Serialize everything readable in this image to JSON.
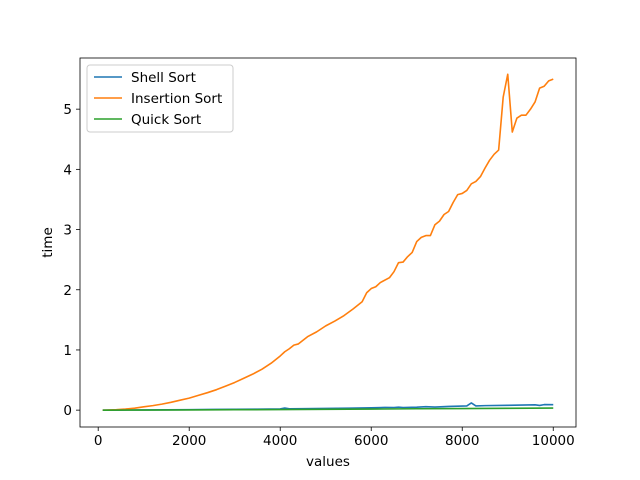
{
  "chart_data": {
    "type": "line",
    "xlabel": "values",
    "ylabel": "time",
    "xlim": [
      -400,
      10500
    ],
    "ylim": [
      -0.28,
      5.85
    ],
    "xticks": [
      0,
      2000,
      4000,
      6000,
      8000,
      10000
    ],
    "yticks": [
      0,
      1,
      2,
      3,
      4,
      5
    ],
    "grid": false,
    "legend_position": "top-left",
    "series": [
      {
        "name": "Shell Sort",
        "color": "#1f77b4",
        "points": [
          [
            100,
            0.0
          ],
          [
            500,
            0.002
          ],
          [
            1000,
            0.004
          ],
          [
            1500,
            0.006
          ],
          [
            2000,
            0.008
          ],
          [
            2500,
            0.011
          ],
          [
            3000,
            0.014
          ],
          [
            3500,
            0.016
          ],
          [
            4000,
            0.02
          ],
          [
            4100,
            0.035
          ],
          [
            4200,
            0.022
          ],
          [
            4500,
            0.024
          ],
          [
            5000,
            0.028
          ],
          [
            5500,
            0.033
          ],
          [
            6000,
            0.038
          ],
          [
            6300,
            0.045
          ],
          [
            6500,
            0.044
          ],
          [
            6600,
            0.05
          ],
          [
            6700,
            0.043
          ],
          [
            7000,
            0.05
          ],
          [
            7200,
            0.058
          ],
          [
            7400,
            0.052
          ],
          [
            7700,
            0.062
          ],
          [
            8000,
            0.068
          ],
          [
            8100,
            0.07
          ],
          [
            8200,
            0.12
          ],
          [
            8300,
            0.07
          ],
          [
            8500,
            0.075
          ],
          [
            9000,
            0.08
          ],
          [
            9300,
            0.085
          ],
          [
            9600,
            0.088
          ],
          [
            9700,
            0.078
          ],
          [
            9800,
            0.092
          ],
          [
            10000,
            0.09
          ]
        ]
      },
      {
        "name": "Insertion Sort",
        "color": "#ff7f0e",
        "points": [
          [
            100,
            0.0
          ],
          [
            200,
            0.002
          ],
          [
            400,
            0.008
          ],
          [
            600,
            0.018
          ],
          [
            800,
            0.032
          ],
          [
            1000,
            0.055
          ],
          [
            1200,
            0.075
          ],
          [
            1400,
            0.1
          ],
          [
            1600,
            0.13
          ],
          [
            1800,
            0.165
          ],
          [
            2000,
            0.2
          ],
          [
            2200,
            0.245
          ],
          [
            2400,
            0.29
          ],
          [
            2600,
            0.34
          ],
          [
            2800,
            0.4
          ],
          [
            3000,
            0.46
          ],
          [
            3200,
            0.53
          ],
          [
            3400,
            0.6
          ],
          [
            3600,
            0.68
          ],
          [
            3800,
            0.78
          ],
          [
            4000,
            0.9
          ],
          [
            4100,
            0.97
          ],
          [
            4200,
            1.02
          ],
          [
            4300,
            1.08
          ],
          [
            4400,
            1.1
          ],
          [
            4600,
            1.22
          ],
          [
            4800,
            1.3
          ],
          [
            5000,
            1.4
          ],
          [
            5200,
            1.48
          ],
          [
            5400,
            1.57
          ],
          [
            5600,
            1.68
          ],
          [
            5800,
            1.8
          ],
          [
            5900,
            1.95
          ],
          [
            6000,
            2.02
          ],
          [
            6100,
            2.05
          ],
          [
            6200,
            2.12
          ],
          [
            6400,
            2.2
          ],
          [
            6500,
            2.3
          ],
          [
            6600,
            2.45
          ],
          [
            6700,
            2.46
          ],
          [
            6800,
            2.55
          ],
          [
            6900,
            2.62
          ],
          [
            7000,
            2.8
          ],
          [
            7100,
            2.87
          ],
          [
            7200,
            2.9
          ],
          [
            7300,
            2.9
          ],
          [
            7400,
            3.08
          ],
          [
            7500,
            3.14
          ],
          [
            7600,
            3.25
          ],
          [
            7700,
            3.3
          ],
          [
            7800,
            3.45
          ],
          [
            7900,
            3.58
          ],
          [
            8000,
            3.6
          ],
          [
            8100,
            3.65
          ],
          [
            8200,
            3.76
          ],
          [
            8300,
            3.8
          ],
          [
            8400,
            3.88
          ],
          [
            8500,
            4.02
          ],
          [
            8600,
            4.15
          ],
          [
            8700,
            4.25
          ],
          [
            8800,
            4.32
          ],
          [
            8900,
            5.2
          ],
          [
            9000,
            5.58
          ],
          [
            9100,
            4.62
          ],
          [
            9200,
            4.85
          ],
          [
            9300,
            4.9
          ],
          [
            9400,
            4.9
          ],
          [
            9500,
            5.0
          ],
          [
            9600,
            5.12
          ],
          [
            9700,
            5.35
          ],
          [
            9800,
            5.38
          ],
          [
            9900,
            5.47
          ],
          [
            10000,
            5.5
          ]
        ]
      },
      {
        "name": "Quick Sort",
        "color": "#2ca02c",
        "points": [
          [
            100,
            0.0
          ],
          [
            1000,
            0.002
          ],
          [
            2000,
            0.004
          ],
          [
            3000,
            0.007
          ],
          [
            4000,
            0.01
          ],
          [
            5000,
            0.014
          ],
          [
            6000,
            0.018
          ],
          [
            7000,
            0.023
          ],
          [
            8000,
            0.027
          ],
          [
            9000,
            0.031
          ],
          [
            10000,
            0.035
          ]
        ]
      }
    ]
  }
}
